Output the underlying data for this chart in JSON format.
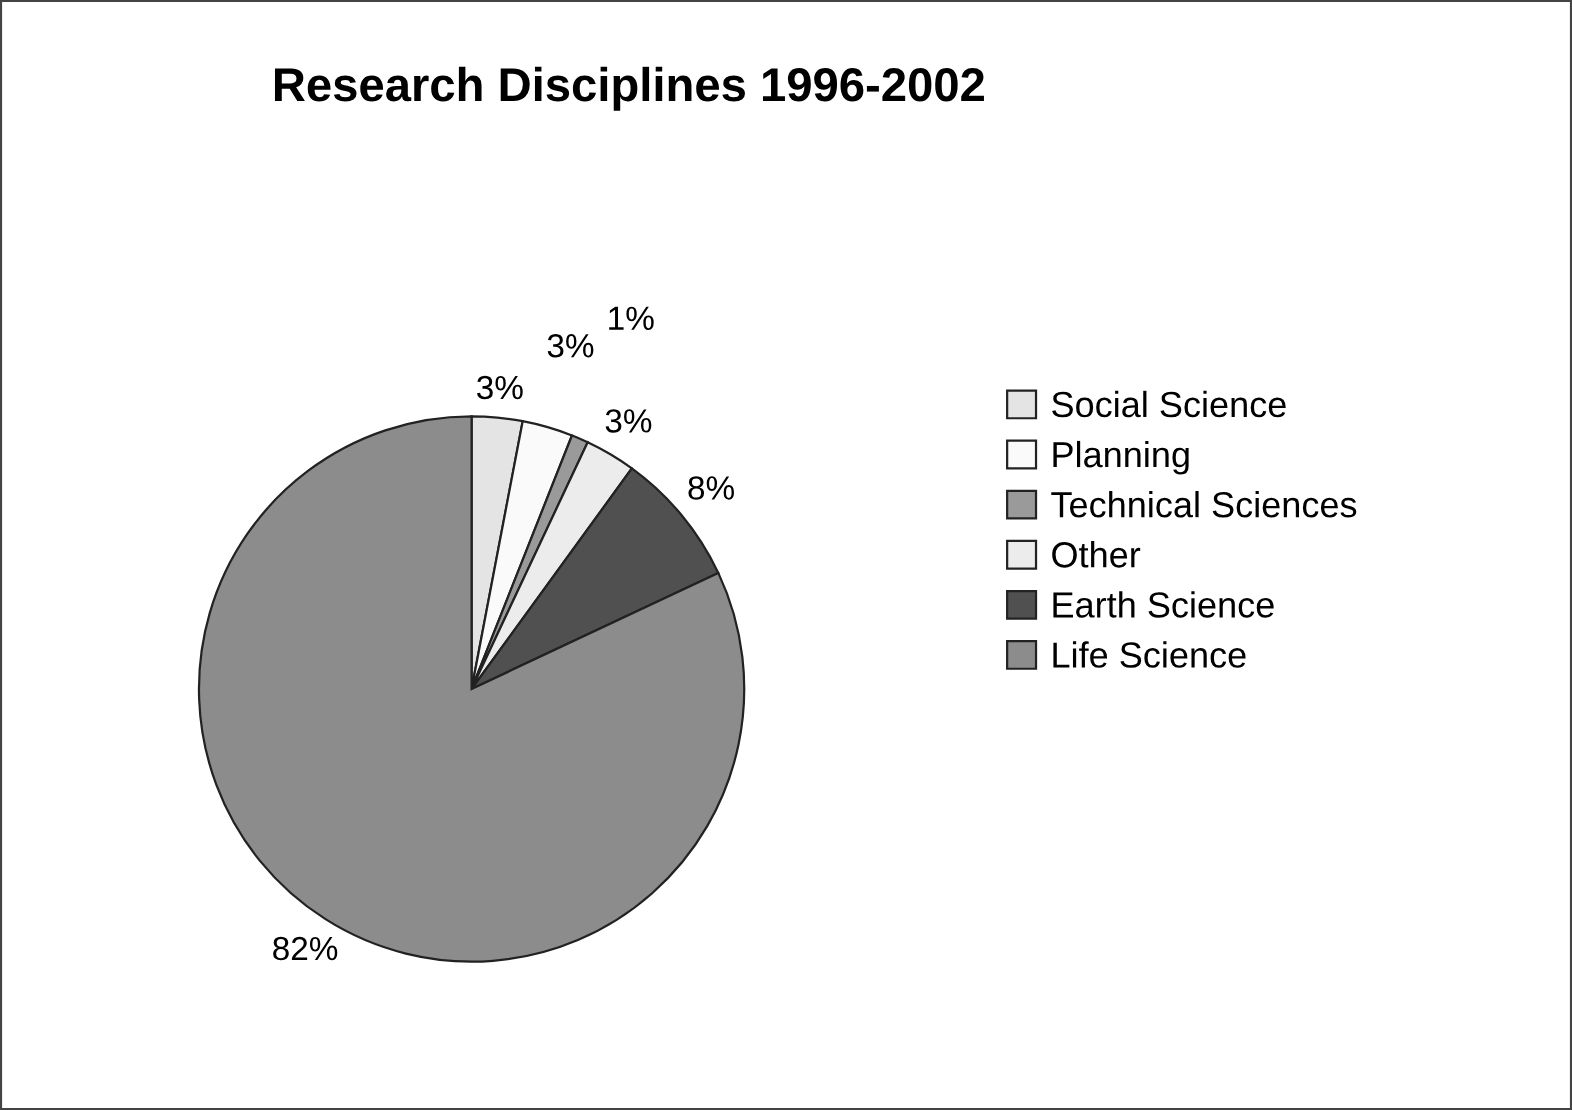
{
  "chart_data": {
    "type": "pie",
    "title": "Research Disciplines 1996-2002",
    "categories": [
      "Social Science",
      "Planning",
      "Technical Sciences",
      "Other",
      "Earth Science",
      "Life Science"
    ],
    "values": [
      3,
      3,
      1,
      3,
      8,
      82
    ],
    "value_labels": [
      "3%",
      "3%",
      "1%",
      "3%",
      "8%",
      "82%"
    ],
    "colors": [
      "#e4e4e4",
      "#fafafa",
      "#9a9a9a",
      "#ececec",
      "#505050",
      "#8c8c8c"
    ],
    "legend": "right"
  }
}
